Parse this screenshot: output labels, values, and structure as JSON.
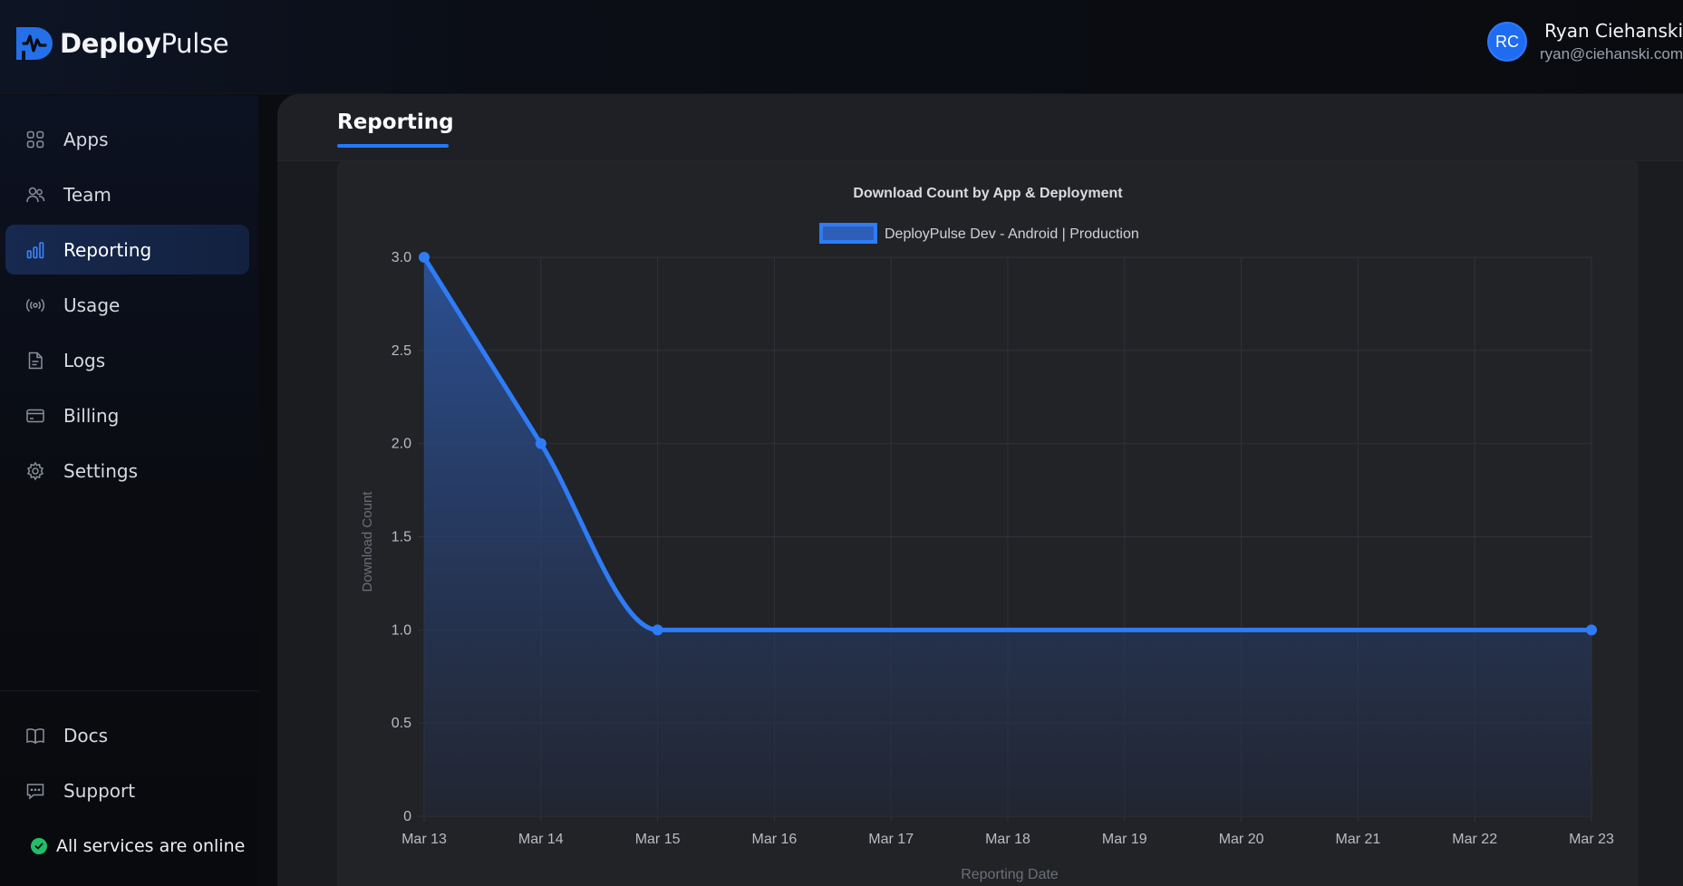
{
  "brand": {
    "name_bold": "Deploy",
    "name_light": "Pulse",
    "accent": "#2478ff"
  },
  "user": {
    "initials": "RC",
    "name": "Ryan Ciehanski",
    "email": "ryan@ciehanski.com"
  },
  "sidebar": {
    "items": [
      {
        "label": "Apps",
        "icon": "grid-icon"
      },
      {
        "label": "Team",
        "icon": "users-icon"
      },
      {
        "label": "Reporting",
        "icon": "bar-chart-icon",
        "active": true
      },
      {
        "label": "Usage",
        "icon": "broadcast-icon"
      },
      {
        "label": "Logs",
        "icon": "file-icon"
      },
      {
        "label": "Billing",
        "icon": "credit-card-icon"
      },
      {
        "label": "Settings",
        "icon": "gear-icon"
      }
    ],
    "bottom_items": [
      {
        "label": "Docs",
        "icon": "book-icon"
      },
      {
        "label": "Support",
        "icon": "chat-icon"
      }
    ],
    "status": {
      "text": "All services are online",
      "color": "#1fbf6a"
    }
  },
  "tabs": [
    {
      "label": "Reporting",
      "active": true
    }
  ],
  "chart_data": {
    "type": "area",
    "title": "Download Count by App & Deployment",
    "xlabel": "Reporting Date",
    "ylabel": "Download Count",
    "categories": [
      "Mar 13",
      "Mar 14",
      "Mar 15",
      "Mar 16",
      "Mar 17",
      "Mar 18",
      "Mar 19",
      "Mar 20",
      "Mar 21",
      "Mar 22",
      "Mar 23"
    ],
    "series": [
      {
        "name": "DeployPulse Dev - Android | Production",
        "color": "#2e7cf6",
        "points": [
          {
            "x": "Mar 13",
            "y": 3.0
          },
          {
            "x": "Mar 14",
            "y": 2.0
          },
          {
            "x": "Mar 15",
            "y": 1.0
          },
          {
            "x": "Mar 23",
            "y": 1.0
          }
        ]
      }
    ],
    "yticks": [
      "0",
      "0.5",
      "1.0",
      "1.5",
      "2.0",
      "2.5",
      "3.0"
    ],
    "ylim": [
      0,
      3
    ],
    "grid": true,
    "legend": "top-center"
  }
}
